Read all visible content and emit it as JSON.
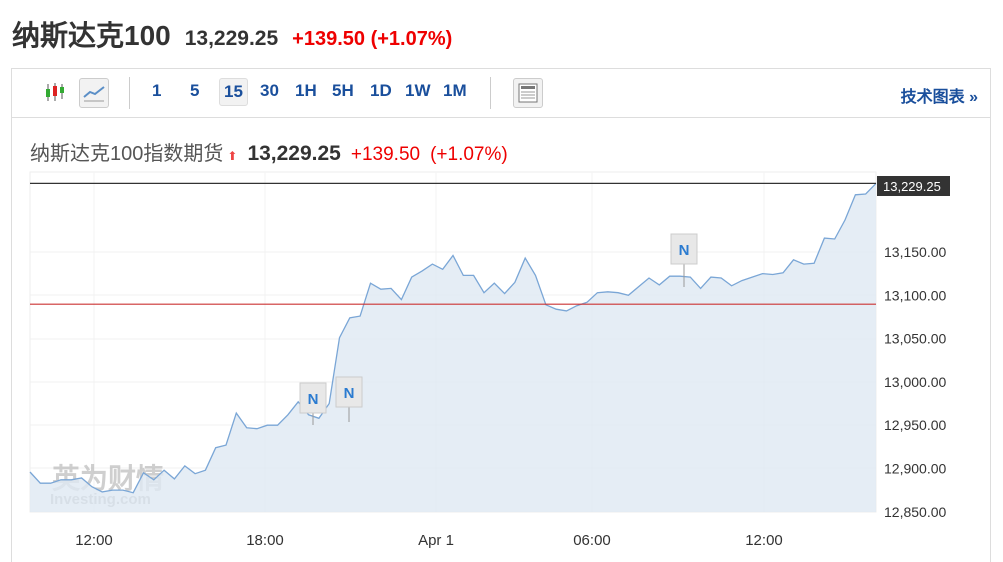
{
  "header": {
    "title": "纳斯达克100",
    "price": "13,229.25",
    "change": "+139.50 (+1.07%)"
  },
  "toolbar": {
    "intervals": [
      "1",
      "5",
      "15",
      "30",
      "1H",
      "5H",
      "1D",
      "1W",
      "1M"
    ],
    "selected": "15",
    "technical_link": "技术图表 »",
    "icons": [
      "candlestick-icon",
      "line-chart-icon",
      "news-layout-icon"
    ]
  },
  "sub": {
    "name": "纳斯达克100指数期货",
    "price": "13,229.25",
    "change": "+139.50",
    "pct": "(+1.07%)"
  },
  "watermark": {
    "cn": "英为财情",
    "en": "Investing.com"
  },
  "chart_data": {
    "type": "area",
    "ylim": [
      12850,
      13240
    ],
    "yticks": [
      "13,150.00",
      "13,100.00",
      "13,050.00",
      "13,000.00",
      "12,950.00",
      "12,900.00",
      "12,850.00"
    ],
    "xticks": [
      "12:00",
      "18:00",
      "Apr 1",
      "06:00",
      "12:00"
    ],
    "last_label": "13,229.25",
    "last": 13229.25,
    "prev_close": 13089.75,
    "news_markers": [
      "N",
      "N",
      "N"
    ],
    "values": [
      12896,
      12883,
      12883,
      12887,
      12887,
      12889,
      12879,
      12873,
      12875,
      12875,
      12872,
      12895,
      12887,
      12898,
      12888,
      12903,
      12894,
      12898,
      12924,
      12927,
      12964,
      12947,
      12946,
      12950,
      12950,
      12962,
      12977,
      12962,
      12958,
      12975,
      13051,
      13074,
      13076,
      13114,
      13107,
      13108,
      13095,
      13121,
      13128,
      13136,
      13130,
      13146,
      13123,
      13123,
      13103,
      13114,
      13102,
      13115,
      13143,
      13123,
      13089,
      13084,
      13082,
      13088,
      13092,
      13103,
      13104,
      13103,
      13100,
      13110,
      13120,
      13112,
      13122,
      13122,
      13121,
      13108,
      13121,
      13120,
      13111,
      13117,
      13121,
      13125,
      13124,
      13126,
      13141,
      13136,
      13137,
      13166,
      13165,
      13187,
      13216,
      13217,
      13229.25
    ]
  }
}
